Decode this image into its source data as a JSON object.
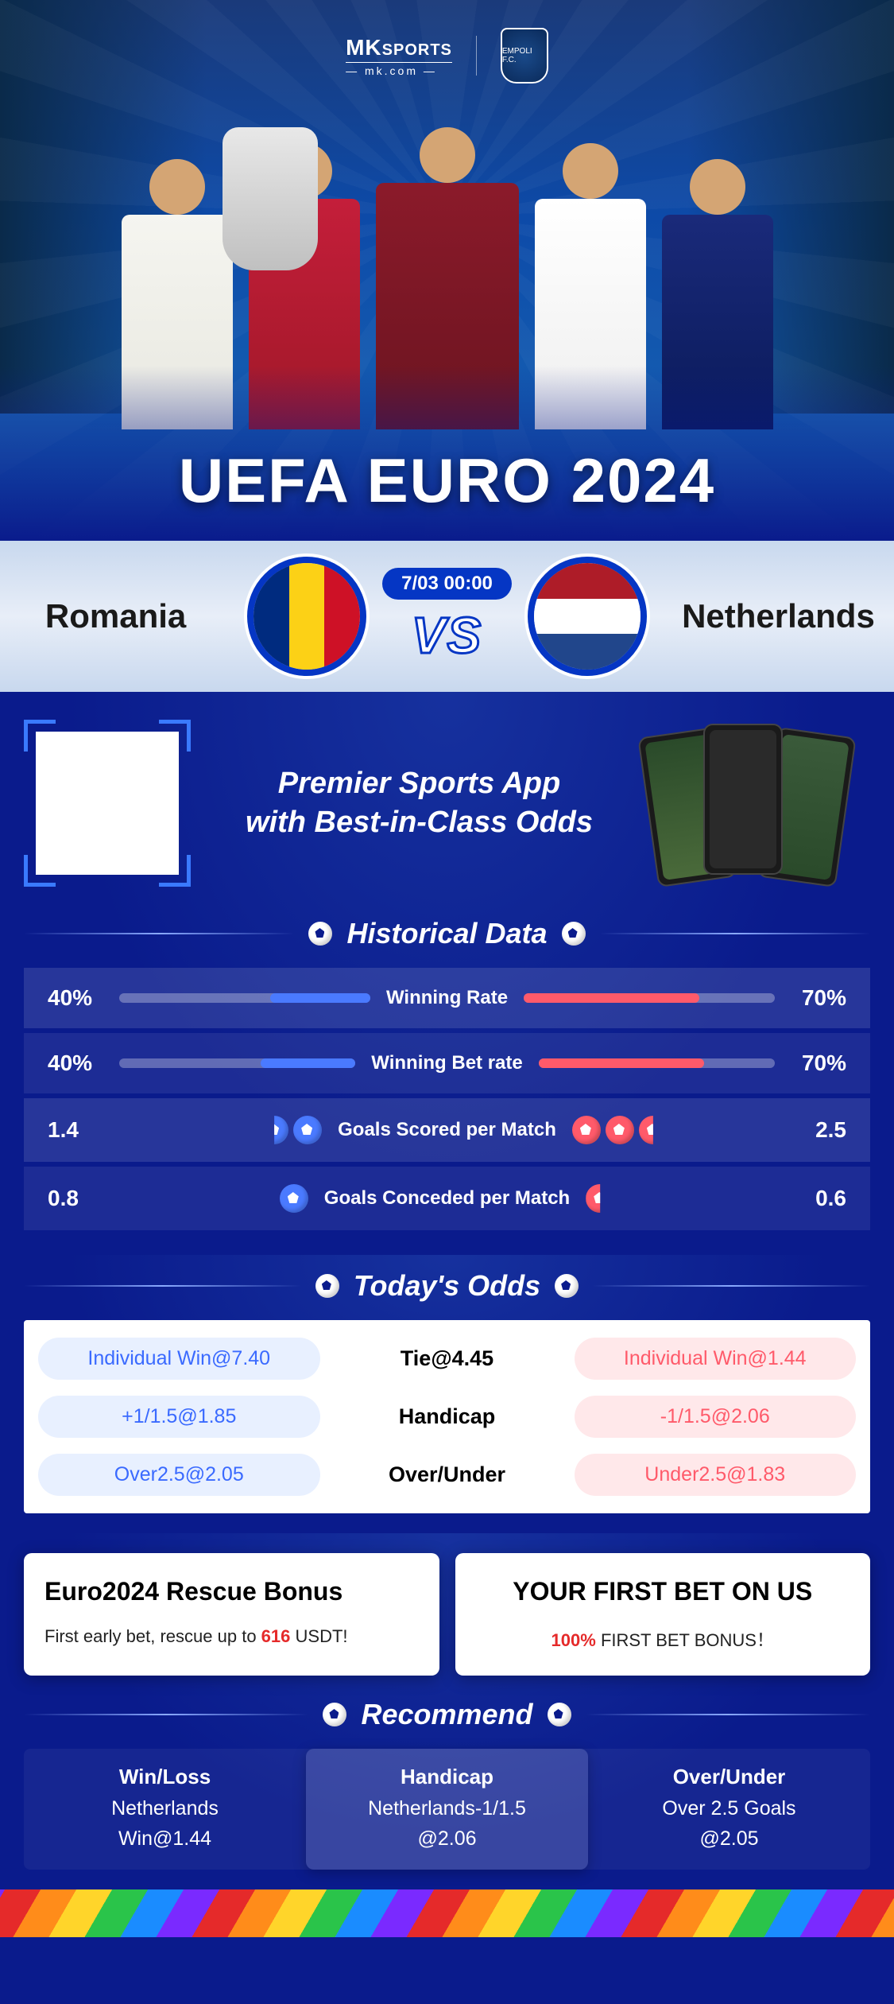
{
  "logo": {
    "main": "MK",
    "tag": "SPORTS",
    "sub": "— mk.com —",
    "badge": "EMPOLI F.C."
  },
  "hero": {
    "title": "UEFA EURO 2024"
  },
  "match": {
    "home": "Romania",
    "away": "Netherlands",
    "time": "7/03 00:00",
    "vs": "VS"
  },
  "promo": {
    "line1": "Premier Sports App",
    "line2": "with Best-in-Class Odds"
  },
  "historical": {
    "title": "Historical Data",
    "rows": [
      {
        "label": "Winning Rate",
        "left": "40%",
        "right": "70%",
        "left_pct": 40,
        "right_pct": 70,
        "type": "bar"
      },
      {
        "label": "Winning Bet rate",
        "left": "40%",
        "right": "70%",
        "left_pct": 40,
        "right_pct": 70,
        "type": "bar"
      },
      {
        "label": "Goals Scored per Match",
        "left": "1.4",
        "right": "2.5",
        "type": "balls",
        "balls_l": 1.5,
        "balls_r": 2.5
      },
      {
        "label": "Goals Conceded per Match",
        "left": "0.8",
        "right": "0.6",
        "type": "balls",
        "balls_l": 1,
        "balls_r": 0.5
      }
    ]
  },
  "odds": {
    "title": "Today's Odds",
    "rows": [
      {
        "left": "Individual Win@7.40",
        "center": "Tie@4.45",
        "right": "Individual Win@1.44"
      },
      {
        "left": "+1/1.5@1.85",
        "center": "Handicap",
        "right": "-1/1.5@2.06"
      },
      {
        "left": "Over2.5@2.05",
        "center": "Over/Under",
        "right": "Under2.5@1.83"
      }
    ]
  },
  "bonus": {
    "card1": {
      "title": "Euro2024 Rescue Bonus",
      "pre": "First early bet, rescue up to ",
      "hl": "616",
      "post": " USDT!"
    },
    "card2": {
      "title": "YOUR FIRST BET ON US",
      "hl": "100%",
      "post": " FIRST BET BONUS！"
    }
  },
  "recommend": {
    "title": "Recommend",
    "cols": [
      {
        "label": "Win/Loss",
        "line1": "Netherlands",
        "line2": "Win@1.44"
      },
      {
        "label": "Handicap",
        "line1": "Netherlands-1/1.5",
        "line2": "@2.06"
      },
      {
        "label": "Over/Under",
        "line1": "Over 2.5 Goals",
        "line2": "@2.05"
      }
    ]
  },
  "colors": {
    "primary_blue": "#0a1b8c",
    "accent_blue": "#4a7aff",
    "accent_red": "#ff5a6a",
    "border_blue": "#0536c4"
  }
}
